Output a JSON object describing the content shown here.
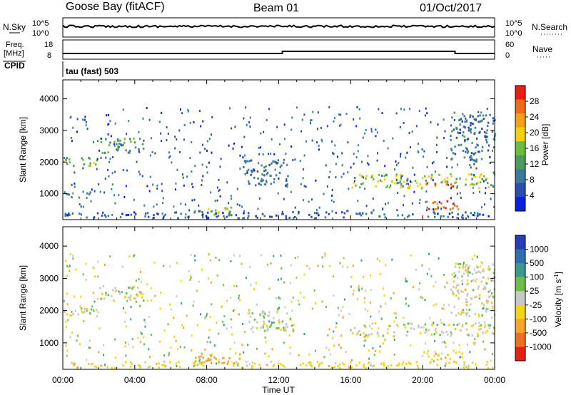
{
  "header": {
    "station": "Goose Bay (fitACF)",
    "beam": "Beam 01",
    "date": "01/Oct/2017"
  },
  "noise_panel": {
    "left_label": "N.Sky",
    "right_label": "N.Search",
    "left_ticks": [
      "10^5",
      "10^0"
    ],
    "right_ticks": [
      "10^5",
      "10^0"
    ]
  },
  "freq_panel": {
    "left_label_1": "Freq.",
    "left_label_2": "[MHz]",
    "right_label": "Nave",
    "left_ticks": [
      "18",
      "8"
    ],
    "right_ticks": [
      "60",
      "0"
    ]
  },
  "cpid_panel": {
    "label": "CPID",
    "text": "tau (fast) 503"
  },
  "x_axis": {
    "label": "Time UT",
    "ticks": [
      "00:00",
      "04:00",
      "08:00",
      "12:00",
      "16:00",
      "20:00",
      "00:00"
    ]
  },
  "colors": {
    "power": [
      "#0a1ee6",
      "#2a4db0",
      "#3a7a9a",
      "#4c9a5c",
      "#6dbd3c",
      "#f2d010",
      "#f5a017",
      "#f26a12",
      "#ee1c0e"
    ],
    "velocity": [
      "#2a3cb8",
      "#2f6fb0",
      "#3a9a8c",
      "#6cc04a",
      "#c8c8c8",
      "#f3d41a",
      "#f5a623",
      "#f07020",
      "#e82010"
    ]
  },
  "chart_data": [
    {
      "type": "heatmap",
      "title": "Power",
      "ylabel": "Slant Range [km]",
      "xlabel": "",
      "ylim": [
        180,
        4600
      ],
      "xlim": [
        0,
        24
      ],
      "y_ticks": [
        1000,
        2000,
        3000,
        4000
      ],
      "x_ticks": [
        0,
        4,
        8,
        12,
        16,
        20,
        24
      ],
      "colorbar": {
        "label": "Power [dB]",
        "ticks": [
          "4",
          "8",
          "12",
          "16",
          "20",
          "24",
          "28"
        ],
        "range": [
          0,
          30
        ]
      },
      "regions": [
        {
          "t": [
            0.0,
            2.0
          ],
          "r": [
            1900,
            2200
          ],
          "value": 14
        },
        {
          "t": [
            2.0,
            4.5
          ],
          "r": [
            2300,
            2800
          ],
          "value": 12
        },
        {
          "t": [
            0.0,
            1.5
          ],
          "r": [
            900,
            1100
          ],
          "value": 10
        },
        {
          "t": [
            0.0,
            24.0
          ],
          "r": [
            250,
            450
          ],
          "value": 6
        },
        {
          "t": [
            7.5,
            9.5
          ],
          "r": [
            350,
            650
          ],
          "value": 16
        },
        {
          "t": [
            10.0,
            12.5
          ],
          "r": [
            1300,
            2100
          ],
          "value": 8
        },
        {
          "t": [
            16.0,
            24.0
          ],
          "r": [
            1200,
            1650
          ],
          "value": 16
        },
        {
          "t": [
            20.0,
            21.8
          ],
          "r": [
            1250,
            1450
          ],
          "value": 26
        },
        {
          "t": [
            20.0,
            22.2
          ],
          "r": [
            500,
            800
          ],
          "value": 24
        },
        {
          "t": [
            21.5,
            24.0
          ],
          "r": [
            2000,
            3600
          ],
          "value": 8
        }
      ]
    },
    {
      "type": "heatmap",
      "title": "Velocity",
      "ylabel": "Slant Range [km]",
      "xlabel": "Time UT",
      "ylim": [
        180,
        4600
      ],
      "xlim": [
        0,
        24
      ],
      "y_ticks": [
        1000,
        2000,
        3000,
        4000
      ],
      "x_ticks": [
        0,
        4,
        8,
        12,
        16,
        20,
        24
      ],
      "colorbar": {
        "label": "Velocity [m s^-1]",
        "ticks": [
          "1000",
          "500",
          "100",
          "25",
          "-25",
          "-100",
          "-500",
          "-1000"
        ]
      },
      "regions": [
        {
          "t": [
            0.0,
            2.0
          ],
          "r": [
            1850,
            2150
          ],
          "value": 0
        },
        {
          "t": [
            2.0,
            4.5
          ],
          "r": [
            2300,
            2800
          ],
          "value": 0
        },
        {
          "t": [
            0.0,
            24.0
          ],
          "r": [
            250,
            450
          ],
          "value": -60
        },
        {
          "t": [
            7.0,
            9.8
          ],
          "r": [
            350,
            700
          ],
          "value": -150
        },
        {
          "t": [
            10.0,
            13.0
          ],
          "r": [
            1400,
            2100
          ],
          "value": 0
        },
        {
          "t": [
            16.0,
            24.0
          ],
          "r": [
            1250,
            1650
          ],
          "value": 0
        },
        {
          "t": [
            20.0,
            22.2
          ],
          "r": [
            500,
            800
          ],
          "value": -80
        },
        {
          "t": [
            21.5,
            24.0
          ],
          "r": [
            1800,
            3500
          ],
          "value": 0
        }
      ]
    }
  ]
}
